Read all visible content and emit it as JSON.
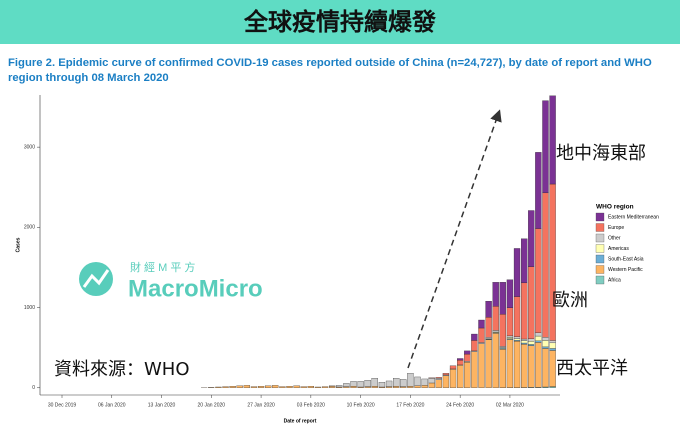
{
  "banner": "全球疫情持續爆發",
  "chart_data": {
    "type": "stacked_bar",
    "title": "Figure 2. Epidemic curve of confirmed COVID-19 cases reported outside of China (n=24,727), by date of report and WHO region through 08 March 2020",
    "x_label": "Date of report",
    "y_label": "Cases",
    "legend_title": "WHO region",
    "legend": "right",
    "categories": [
      "30 Dec 2019",
      null,
      null,
      null,
      null,
      null,
      null,
      "06 Jan 2020",
      null,
      null,
      null,
      null,
      null,
      null,
      "13 Jan 2020",
      null,
      null,
      null,
      null,
      null,
      null,
      "20 Jan 2020",
      null,
      null,
      null,
      null,
      null,
      null,
      "27 Jan 2020",
      null,
      null,
      null,
      null,
      null,
      null,
      "03 Feb 2020",
      null,
      null,
      null,
      null,
      null,
      null,
      "10 Feb 2020",
      null,
      null,
      null,
      null,
      null,
      null,
      "17 Feb 2020",
      null,
      null,
      null,
      null,
      null,
      null,
      "24 Feb 2020",
      null,
      null,
      null,
      null,
      null,
      null,
      "02 Mar 2020",
      null,
      null,
      null,
      null,
      null,
      null
    ],
    "ylim": [
      -90,
      3650
    ],
    "yticks": [
      0,
      1000,
      2000,
      3000
    ],
    "series": [
      {
        "name": "Eastern Mediterranean",
        "color": "#7b3294",
        "values": [
          0,
          0,
          0,
          0,
          0,
          0,
          0,
          0,
          0,
          0,
          0,
          0,
          0,
          0,
          0,
          0,
          0,
          0,
          0,
          0,
          0,
          0,
          0,
          0,
          0,
          0,
          0,
          0,
          0,
          0,
          0,
          0,
          0,
          0,
          0,
          0,
          0,
          0,
          0,
          0,
          0,
          0,
          0,
          0,
          0,
          0,
          0,
          0,
          0,
          0,
          0,
          0,
          0,
          0,
          0,
          0,
          20,
          40,
          80,
          100,
          200,
          300,
          400,
          350,
          600,
          550,
          700,
          950,
          1150,
          1100
        ]
      },
      {
        "name": "Europe",
        "color": "#f4735f",
        "values": [
          0,
          0,
          0,
          0,
          0,
          0,
          0,
          0,
          0,
          0,
          0,
          0,
          0,
          0,
          0,
          0,
          0,
          0,
          0,
          0,
          0,
          0,
          0,
          0,
          0,
          0,
          0,
          0,
          0,
          0,
          0,
          0,
          0,
          0,
          0,
          0,
          0,
          0,
          0,
          0,
          0,
          0,
          0,
          0,
          0,
          0,
          0,
          0,
          0,
          0,
          0,
          0,
          5,
          10,
          20,
          40,
          60,
          90,
          130,
          180,
          250,
          300,
          400,
          350,
          500,
          700,
          900,
          1300,
          1800,
          1950
        ]
      },
      {
        "name": "Other",
        "color": "#cccccc",
        "values": [
          0,
          0,
          0,
          0,
          0,
          0,
          0,
          0,
          0,
          0,
          0,
          0,
          0,
          0,
          0,
          0,
          0,
          0,
          0,
          0,
          0,
          0,
          0,
          0,
          0,
          0,
          0,
          0,
          0,
          0,
          0,
          0,
          0,
          0,
          0,
          0,
          0,
          0,
          5,
          20,
          40,
          60,
          70,
          80,
          100,
          60,
          70,
          100,
          90,
          160,
          110,
          80,
          60,
          20,
          10,
          5,
          5,
          10,
          10,
          15,
          20,
          20,
          15,
          20,
          25,
          20,
          30,
          40,
          40,
          30
        ]
      },
      {
        "name": "Americas",
        "color": "#ffffb3",
        "values": [
          0,
          0,
          0,
          0,
          0,
          0,
          0,
          0,
          0,
          0,
          0,
          0,
          0,
          0,
          0,
          0,
          0,
          0,
          0,
          0,
          0,
          0,
          0,
          0,
          0,
          0,
          0,
          0,
          0,
          0,
          0,
          0,
          0,
          0,
          0,
          0,
          0,
          0,
          0,
          0,
          0,
          0,
          0,
          0,
          0,
          0,
          0,
          0,
          0,
          0,
          0,
          0,
          0,
          0,
          0,
          0,
          0,
          0,
          0,
          0,
          5,
          10,
          10,
          15,
          20,
          30,
          40,
          60,
          80,
          70
        ]
      },
      {
        "name": "South-East Asia",
        "color": "#6baed6",
        "values": [
          0,
          0,
          0,
          0,
          0,
          0,
          0,
          0,
          0,
          0,
          0,
          0,
          0,
          0,
          0,
          0,
          0,
          0,
          0,
          0,
          0,
          0,
          0,
          0,
          0,
          0,
          0,
          0,
          0,
          0,
          0,
          0,
          0,
          0,
          0,
          0,
          0,
          0,
          0,
          0,
          0,
          0,
          0,
          0,
          0,
          0,
          0,
          0,
          0,
          0,
          0,
          0,
          0,
          0,
          0,
          0,
          0,
          0,
          0,
          0,
          5,
          5,
          10,
          10,
          10,
          15,
          15,
          20,
          20,
          25
        ]
      },
      {
        "name": "Western Pacific",
        "color": "#fdb462",
        "values": [
          0,
          0,
          0,
          0,
          0,
          0,
          0,
          0,
          0,
          0,
          0,
          0,
          0,
          0,
          0,
          0,
          0,
          0,
          0,
          0,
          2,
          5,
          10,
          15,
          20,
          25,
          30,
          15,
          20,
          25,
          30,
          15,
          20,
          25,
          15,
          20,
          10,
          15,
          20,
          10,
          15,
          20,
          10,
          15,
          20,
          10,
          15,
          20,
          15,
          20,
          25,
          30,
          60,
          100,
          150,
          230,
          280,
          320,
          450,
          550,
          600,
          680,
          480,
          600,
          580,
          540,
          520,
          560,
          480,
          450
        ]
      },
      {
        "name": "Africa",
        "color": "#80cdc1",
        "values": [
          0,
          0,
          0,
          0,
          0,
          0,
          0,
          0,
          0,
          0,
          0,
          0,
          0,
          0,
          0,
          0,
          0,
          0,
          0,
          0,
          0,
          0,
          0,
          0,
          0,
          0,
          0,
          0,
          0,
          0,
          0,
          0,
          0,
          0,
          0,
          0,
          0,
          0,
          0,
          0,
          0,
          0,
          0,
          0,
          0,
          0,
          0,
          0,
          0,
          0,
          0,
          0,
          0,
          0,
          0,
          0,
          0,
          0,
          0,
          0,
          0,
          0,
          1,
          2,
          2,
          3,
          5,
          5,
          10,
          15
        ]
      }
    ],
    "annotations": [
      "地中海東部",
      "歐洲",
      "西太平洋",
      "資料來源：WHO"
    ]
  },
  "watermark": {
    "chinese": "財 經 M 平 方",
    "brand": "MacroMicro"
  }
}
